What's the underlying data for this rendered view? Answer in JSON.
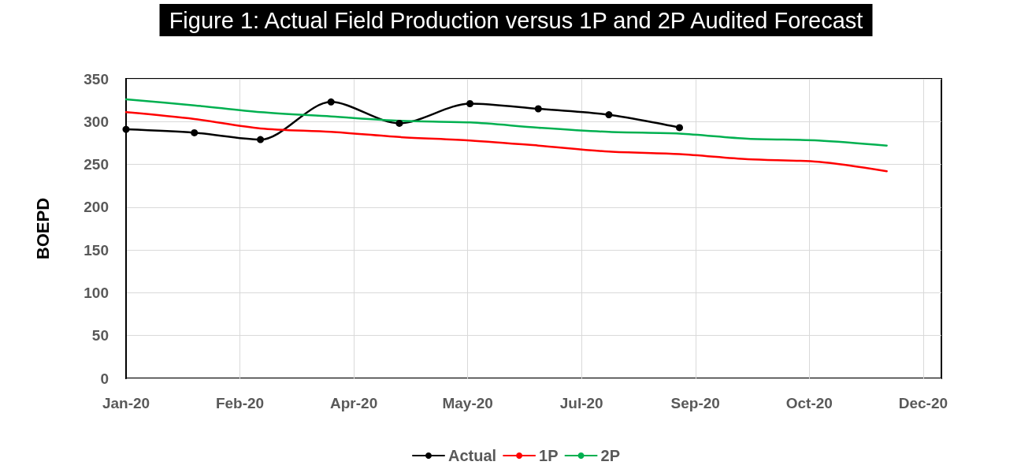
{
  "chart_data": {
    "type": "line",
    "title": "Figure 1: Actual Field Production versus 1P and 2P Audited Forecast",
    "ylabel": "BOEPD",
    "xlim": [
      "2020-01-01",
      "2020-12-24"
    ],
    "xticks": [
      {
        "value": "2020-01-01",
        "label": "Jan-20"
      },
      {
        "value": "2020-02-20",
        "label": "Feb-20"
      },
      {
        "value": "2020-04-10",
        "label": "Apr-20"
      },
      {
        "value": "2020-05-30",
        "label": "May-20"
      },
      {
        "value": "2020-07-19",
        "label": "Jul-20"
      },
      {
        "value": "2020-09-07",
        "label": "Sep-20"
      },
      {
        "value": "2020-10-27",
        "label": "Oct-20"
      },
      {
        "value": "2020-12-16",
        "label": "Dec-20"
      }
    ],
    "ylim": [
      0,
      350
    ],
    "yticks": [
      0,
      50,
      100,
      150,
      200,
      250,
      300,
      350
    ],
    "grid": true,
    "legend": "bottom",
    "series": [
      {
        "name": "Actual",
        "color": "#000000",
        "marker": "circle",
        "x": [
          "2020-01-01",
          "2020-01-31",
          "2020-02-29",
          "2020-03-31",
          "2020-04-30",
          "2020-05-31",
          "2020-06-30",
          "2020-07-31",
          "2020-08-31"
        ],
        "values": [
          291,
          287,
          279,
          323,
          298,
          321,
          315,
          308,
          293
        ]
      },
      {
        "name": "1P",
        "color": "#ff0000",
        "marker": "none",
        "x": [
          "2020-01-01",
          "2020-01-31",
          "2020-02-29",
          "2020-03-31",
          "2020-04-30",
          "2020-05-31",
          "2020-06-30",
          "2020-07-31",
          "2020-08-31",
          "2020-09-30",
          "2020-10-31",
          "2020-11-30"
        ],
        "values": [
          311,
          303,
          292,
          288,
          282,
          278,
          272,
          265,
          262,
          256,
          253,
          242
        ]
      },
      {
        "name": "2P",
        "color": "#00b050",
        "marker": "none",
        "x": [
          "2020-01-01",
          "2020-01-31",
          "2020-02-29",
          "2020-03-31",
          "2020-04-30",
          "2020-05-31",
          "2020-06-30",
          "2020-07-31",
          "2020-08-31",
          "2020-09-30",
          "2020-10-31",
          "2020-11-30"
        ],
        "values": [
          326,
          319,
          311,
          306,
          301,
          299,
          293,
          288,
          286,
          280,
          278,
          272
        ]
      }
    ]
  }
}
